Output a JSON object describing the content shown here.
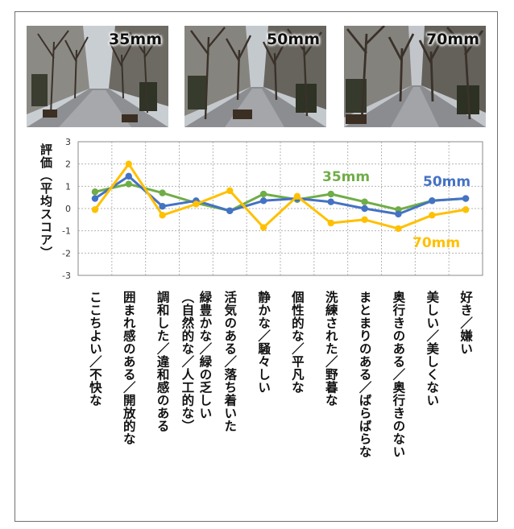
{
  "photos": [
    {
      "label": "35mm"
    },
    {
      "label": "50mm"
    },
    {
      "label": "70mm"
    }
  ],
  "colors": {
    "s35": "#70AD47",
    "s50": "#4472C4",
    "s70": "#FFC000"
  },
  "chart_data": {
    "type": "line",
    "ylabel": "評価（平均スコア）",
    "ylim": [
      -3,
      3
    ],
    "yticks": [
      3,
      2,
      1,
      0,
      -1,
      -2,
      -3
    ],
    "grid": true,
    "legend": "inline labels",
    "categories": [
      "ここちよい／不快な",
      "囲まれ感のある／開放的な",
      "調和した／違和感のある",
      "緑豊かな／緑の乏しい（自然的な／人工的な）",
      "活気のある／落ち着いた",
      "静かな／騒々しい",
      "個性的な／平凡な",
      "洗練された／野暮な",
      "まとまりのある／ばらばらな",
      "奥行きのある／奥行きのない",
      "美しい／美しくない",
      "好き／嫌い"
    ],
    "category_lines": [
      [
        "ここちよい／不快な"
      ],
      [
        "囲まれ感のある／開放的な"
      ],
      [
        "調和した／違和感のある"
      ],
      [
        "緑豊かな／緑の乏しい",
        "（自然的な／人工的な）"
      ],
      [
        "活気のある／落ち着いた"
      ],
      [
        "静かな／騒々しい"
      ],
      [
        "個性的な／平凡な"
      ],
      [
        "洗練された／野暮な"
      ],
      [
        "まとまりのある／ばらばらな"
      ],
      [
        "奥行きのある／奥行きのない"
      ],
      [
        "美しい／美しくない"
      ],
      [
        "好き／嫌い"
      ]
    ],
    "series": [
      {
        "name": "35mm",
        "color": "#70AD47",
        "values": [
          0.75,
          1.1,
          0.7,
          0.25,
          -0.1,
          0.65,
          0.4,
          0.65,
          0.3,
          -0.05,
          0.35,
          0.45
        ]
      },
      {
        "name": "50mm",
        "color": "#4472C4",
        "values": [
          0.45,
          1.45,
          0.1,
          0.35,
          -0.1,
          0.35,
          0.45,
          0.3,
          0.0,
          -0.25,
          0.35,
          0.45
        ]
      },
      {
        "name": "70mm",
        "color": "#FFC000",
        "values": [
          -0.05,
          2.0,
          -0.3,
          0.2,
          0.8,
          -0.85,
          0.55,
          -0.65,
          -0.5,
          -0.9,
          -0.3,
          -0.05
        ]
      }
    ]
  }
}
